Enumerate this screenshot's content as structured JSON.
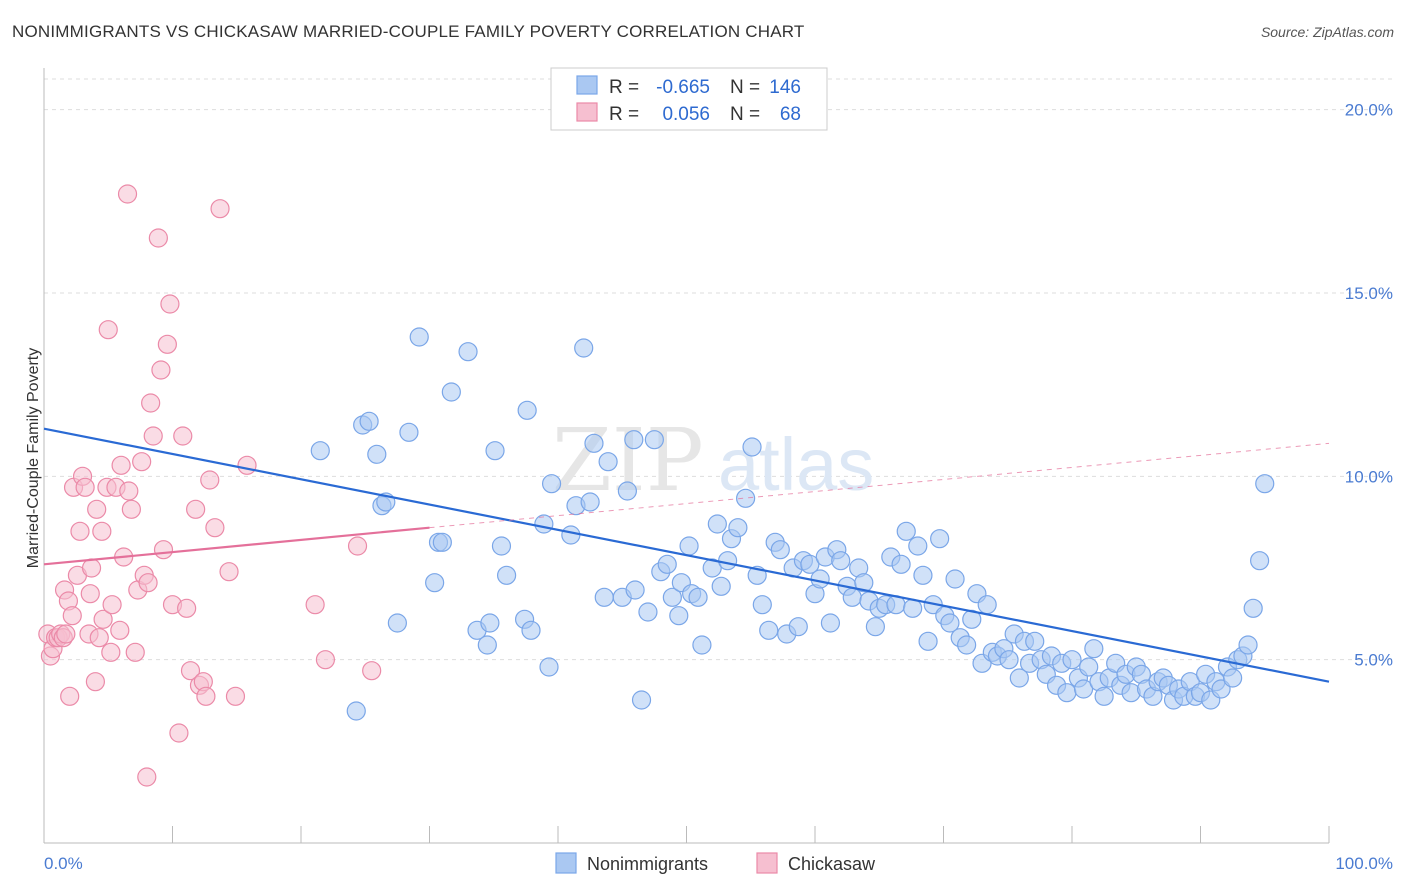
{
  "title": "NONIMMIGRANTS VS CHICKASAW MARRIED-COUPLE FAMILY POVERTY CORRELATION CHART",
  "source": "Source: ZipAtlas.com",
  "watermark": {
    "zip": "ZIP",
    "atlas": "atlas"
  },
  "colors": {
    "blue": "#7aa6e8",
    "blue_fill": "#aac8f2",
    "blue_line": "#2a6ad4",
    "pink": "#eb8aa8",
    "pink_fill": "#f6bfd0",
    "pink_line": "#e4709a",
    "grid": "#dddddd",
    "axis_label": "#4a7bd1"
  },
  "legend": {
    "rows": [
      {
        "r_label": "R =",
        "r_value": "-0.665",
        "n_label": "N =",
        "n_value": "146"
      },
      {
        "r_label": "R =",
        "r_value": "0.056",
        "n_label": "N =",
        "n_value": "68"
      }
    ]
  },
  "bottom_legend": [
    "Nonimmigrants",
    "Chickasaw"
  ],
  "chart_data": {
    "type": "scatter",
    "title": "NONIMMIGRANTS VS CHICKASAW MARRIED-COUPLE FAMILY POVERTY CORRELATION CHART",
    "xlabel": "",
    "ylabel": "Married-Couple Family Poverty",
    "xlim": [
      0,
      100
    ],
    "ylim": [
      0,
      21
    ],
    "x_tick_labels": [
      "0.0%",
      "100.0%"
    ],
    "y_ticks": [
      5,
      10,
      15,
      20
    ],
    "y_tick_labels": [
      "5.0%",
      "10.0%",
      "15.0%",
      "20.0%"
    ],
    "grid": true,
    "legend_position": "top-center",
    "series": [
      {
        "name": "Nonimmigrants",
        "R": -0.665,
        "N": 146,
        "trend": {
          "x": [
            0,
            100
          ],
          "y": [
            11.3,
            4.4
          ]
        },
        "points": [
          [
            21.5,
            10.7
          ],
          [
            24.8,
            11.4
          ],
          [
            25.3,
            11.5
          ],
          [
            25.9,
            10.6
          ],
          [
            26.3,
            9.2
          ],
          [
            26.6,
            9.3
          ],
          [
            27.5,
            6.0
          ],
          [
            28.4,
            11.2
          ],
          [
            29.2,
            13.8
          ],
          [
            30.4,
            7.1
          ],
          [
            30.7,
            8.2
          ],
          [
            31.0,
            8.2
          ],
          [
            31.7,
            12.3
          ],
          [
            33.0,
            13.4
          ],
          [
            33.7,
            5.8
          ],
          [
            34.5,
            5.4
          ],
          [
            34.7,
            6.0
          ],
          [
            35.1,
            10.7
          ],
          [
            35.6,
            8.1
          ],
          [
            36.0,
            7.3
          ],
          [
            37.4,
            6.1
          ],
          [
            37.6,
            11.8
          ],
          [
            37.9,
            5.8
          ],
          [
            38.9,
            8.7
          ],
          [
            39.3,
            4.8
          ],
          [
            39.5,
            9.8
          ],
          [
            41.0,
            8.4
          ],
          [
            41.4,
            9.2
          ],
          [
            42.0,
            13.5
          ],
          [
            42.5,
            9.3
          ],
          [
            42.8,
            10.9
          ],
          [
            43.6,
            6.7
          ],
          [
            43.9,
            10.4
          ],
          [
            45.0,
            6.7
          ],
          [
            45.4,
            9.6
          ],
          [
            45.9,
            11.0
          ],
          [
            46.0,
            6.9
          ],
          [
            46.5,
            3.9
          ],
          [
            47.0,
            6.3
          ],
          [
            47.5,
            11.0
          ],
          [
            48.0,
            7.4
          ],
          [
            48.5,
            7.6
          ],
          [
            48.9,
            6.7
          ],
          [
            49.4,
            6.2
          ],
          [
            49.6,
            7.1
          ],
          [
            50.2,
            8.1
          ],
          [
            50.4,
            6.8
          ],
          [
            50.9,
            6.7
          ],
          [
            51.2,
            5.4
          ],
          [
            52.0,
            7.5
          ],
          [
            52.4,
            8.7
          ],
          [
            52.7,
            7.0
          ],
          [
            53.2,
            7.7
          ],
          [
            53.5,
            8.3
          ],
          [
            54.0,
            8.6
          ],
          [
            54.6,
            9.4
          ],
          [
            55.1,
            10.8
          ],
          [
            55.5,
            7.3
          ],
          [
            55.9,
            6.5
          ],
          [
            56.4,
            5.8
          ],
          [
            56.9,
            8.2
          ],
          [
            57.3,
            8.0
          ],
          [
            57.8,
            5.7
          ],
          [
            58.3,
            7.5
          ],
          [
            58.7,
            5.9
          ],
          [
            59.1,
            7.7
          ],
          [
            59.6,
            7.6
          ],
          [
            60.0,
            6.8
          ],
          [
            60.4,
            7.2
          ],
          [
            60.8,
            7.8
          ],
          [
            61.2,
            6.0
          ],
          [
            61.7,
            8.0
          ],
          [
            62.0,
            7.7
          ],
          [
            62.5,
            7.0
          ],
          [
            62.9,
            6.7
          ],
          [
            63.4,
            7.5
          ],
          [
            63.8,
            7.1
          ],
          [
            64.2,
            6.6
          ],
          [
            64.7,
            5.9
          ],
          [
            65.0,
            6.4
          ],
          [
            65.5,
            6.5
          ],
          [
            65.9,
            7.8
          ],
          [
            66.3,
            6.5
          ],
          [
            66.7,
            7.6
          ],
          [
            67.1,
            8.5
          ],
          [
            67.6,
            6.4
          ],
          [
            68.0,
            8.1
          ],
          [
            68.4,
            7.3
          ],
          [
            68.8,
            5.5
          ],
          [
            69.2,
            6.5
          ],
          [
            69.7,
            8.3
          ],
          [
            70.1,
            6.2
          ],
          [
            70.5,
            6.0
          ],
          [
            70.9,
            7.2
          ],
          [
            71.3,
            5.6
          ],
          [
            71.8,
            5.4
          ],
          [
            72.2,
            6.1
          ],
          [
            72.6,
            6.8
          ],
          [
            73.0,
            4.9
          ],
          [
            73.4,
            6.5
          ],
          [
            73.8,
            5.2
          ],
          [
            74.2,
            5.1
          ],
          [
            74.7,
            5.3
          ],
          [
            75.1,
            5.0
          ],
          [
            75.5,
            5.7
          ],
          [
            75.9,
            4.5
          ],
          [
            76.3,
            5.5
          ],
          [
            76.7,
            4.9
          ],
          [
            77.1,
            5.5
          ],
          [
            77.6,
            5.0
          ],
          [
            78.0,
            4.6
          ],
          [
            78.4,
            5.1
          ],
          [
            78.8,
            4.3
          ],
          [
            79.2,
            4.9
          ],
          [
            79.6,
            4.1
          ],
          [
            80.0,
            5.0
          ],
          [
            80.5,
            4.5
          ],
          [
            80.9,
            4.2
          ],
          [
            81.3,
            4.8
          ],
          [
            81.7,
            5.3
          ],
          [
            82.1,
            4.4
          ],
          [
            82.5,
            4.0
          ],
          [
            82.9,
            4.5
          ],
          [
            83.4,
            4.9
          ],
          [
            83.8,
            4.3
          ],
          [
            84.2,
            4.6
          ],
          [
            84.6,
            4.1
          ],
          [
            85.0,
            4.8
          ],
          [
            85.4,
            4.6
          ],
          [
            85.8,
            4.2
          ],
          [
            86.3,
            4.0
          ],
          [
            86.7,
            4.4
          ],
          [
            87.1,
            4.5
          ],
          [
            87.5,
            4.3
          ],
          [
            87.9,
            3.9
          ],
          [
            88.3,
            4.2
          ],
          [
            88.7,
            4.0
          ],
          [
            89.2,
            4.4
          ],
          [
            89.6,
            4.0
          ],
          [
            90.0,
            4.1
          ],
          [
            90.4,
            4.6
          ],
          [
            90.8,
            3.9
          ],
          [
            91.2,
            4.4
          ],
          [
            91.6,
            4.2
          ],
          [
            92.1,
            4.8
          ],
          [
            92.5,
            4.5
          ],
          [
            92.9,
            5.0
          ],
          [
            93.3,
            5.1
          ],
          [
            93.7,
            5.4
          ],
          [
            94.1,
            6.4
          ],
          [
            94.6,
            7.7
          ],
          [
            95.0,
            9.8
          ],
          [
            24.3,
            3.6
          ]
        ]
      },
      {
        "name": "Chickasaw",
        "R": 0.056,
        "N": 68,
        "trend": {
          "x": [
            0,
            30
          ],
          "y": [
            7.6,
            8.6
          ]
        },
        "trend_dashed": {
          "x": [
            30,
            100
          ],
          "y": [
            8.6,
            10.9
          ]
        },
        "points": [
          [
            0.3,
            5.7
          ],
          [
            0.5,
            5.1
          ],
          [
            0.7,
            5.3
          ],
          [
            0.9,
            5.6
          ],
          [
            1.1,
            5.6
          ],
          [
            1.3,
            5.7
          ],
          [
            1.5,
            5.6
          ],
          [
            1.7,
            5.7
          ],
          [
            1.6,
            6.9
          ],
          [
            1.9,
            6.6
          ],
          [
            2.0,
            4.0
          ],
          [
            2.2,
            6.2
          ],
          [
            2.3,
            9.7
          ],
          [
            2.6,
            7.3
          ],
          [
            2.8,
            8.5
          ],
          [
            3.0,
            10.0
          ],
          [
            3.2,
            9.7
          ],
          [
            3.5,
            5.7
          ],
          [
            3.6,
            6.8
          ],
          [
            3.7,
            7.5
          ],
          [
            4.0,
            4.4
          ],
          [
            4.1,
            9.1
          ],
          [
            4.3,
            5.6
          ],
          [
            4.5,
            8.5
          ],
          [
            4.6,
            6.1
          ],
          [
            4.9,
            9.7
          ],
          [
            5.0,
            14.0
          ],
          [
            5.2,
            5.2
          ],
          [
            5.3,
            6.5
          ],
          [
            5.6,
            9.7
          ],
          [
            5.9,
            5.8
          ],
          [
            6.0,
            10.3
          ],
          [
            6.2,
            7.8
          ],
          [
            6.5,
            17.7
          ],
          [
            6.6,
            9.6
          ],
          [
            6.8,
            9.1
          ],
          [
            7.1,
            5.2
          ],
          [
            7.3,
            6.9
          ],
          [
            7.6,
            10.4
          ],
          [
            7.8,
            7.3
          ],
          [
            8.0,
            1.8
          ],
          [
            8.1,
            7.1
          ],
          [
            8.3,
            12.0
          ],
          [
            8.5,
            11.1
          ],
          [
            8.9,
            16.5
          ],
          [
            9.1,
            12.9
          ],
          [
            9.3,
            8.0
          ],
          [
            9.6,
            13.6
          ],
          [
            9.8,
            14.7
          ],
          [
            10.0,
            6.5
          ],
          [
            10.5,
            3.0
          ],
          [
            10.8,
            11.1
          ],
          [
            11.1,
            6.4
          ],
          [
            11.4,
            4.7
          ],
          [
            11.8,
            9.1
          ],
          [
            12.1,
            4.3
          ],
          [
            12.4,
            4.4
          ],
          [
            12.6,
            4.0
          ],
          [
            12.9,
            9.9
          ],
          [
            13.3,
            8.6
          ],
          [
            13.7,
            17.3
          ],
          [
            14.4,
            7.4
          ],
          [
            14.9,
            4.0
          ],
          [
            15.8,
            10.3
          ],
          [
            21.1,
            6.5
          ],
          [
            21.9,
            5.0
          ],
          [
            24.4,
            8.1
          ],
          [
            25.5,
            4.7
          ]
        ]
      }
    ]
  }
}
